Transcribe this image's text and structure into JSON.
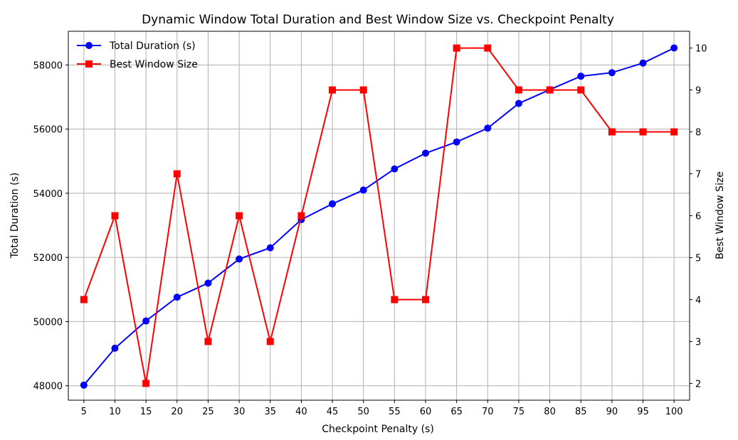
{
  "chart_data": {
    "type": "line",
    "title": "Dynamic Window Total Duration and Best Window Size vs. Checkpoint Penalty",
    "xlabel": "Checkpoint Penalty (s)",
    "ylabel": "Total Duration (s)",
    "y2label": "Best Window Size",
    "grid": true,
    "legend_position": "top-left",
    "x": [
      5,
      10,
      15,
      20,
      25,
      30,
      35,
      40,
      45,
      50,
      55,
      60,
      65,
      70,
      75,
      80,
      85,
      90,
      95,
      100
    ],
    "x_ticks": [
      "5",
      "10",
      "15",
      "20",
      "25",
      "30",
      "35",
      "40",
      "45",
      "50",
      "55",
      "60",
      "65",
      "70",
      "75",
      "80",
      "85",
      "90",
      "95",
      "100"
    ],
    "ylim": [
      47550,
      59050
    ],
    "y_ticks": [
      "48000",
      "50000",
      "52000",
      "54000",
      "56000",
      "58000"
    ],
    "y2lim": [
      1.6,
      10.4
    ],
    "y2_ticks": [
      "2",
      "3",
      "4",
      "5",
      "6",
      "7",
      "8",
      "9",
      "10"
    ],
    "series": [
      {
        "name": "Total Duration (s)",
        "axis": "left",
        "color": "#0000ff",
        "marker": "circle",
        "values": [
          48020,
          49170,
          50020,
          50760,
          51200,
          51950,
          52300,
          53180,
          53670,
          54100,
          54760,
          55250,
          55600,
          56030,
          56800,
          57230,
          57650,
          57760,
          58060,
          58530
        ]
      },
      {
        "name": "Best Window Size",
        "axis": "right",
        "color": "#ff0000",
        "marker": "square",
        "values": [
          4,
          6,
          2,
          7,
          3,
          6,
          3,
          6,
          9,
          9,
          4,
          4,
          10,
          10,
          9,
          9,
          9,
          8,
          8,
          8
        ]
      }
    ]
  }
}
